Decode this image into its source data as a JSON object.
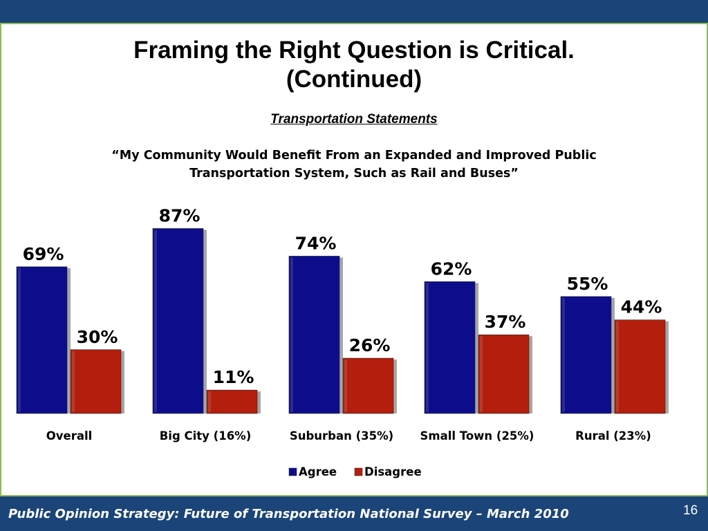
{
  "slide": {
    "title_line1": "Framing the Right Question is Critical.",
    "title_line2": "(Continued)",
    "subtitle": "Transportation Statements",
    "question_line1": "“My Community Would Benefit From an Expanded and Improved Public",
    "question_line2": "Transportation System, Such as Rail and Buses”",
    "footer": "Public Opinion Strategy: Future of Transportation National Survey – March 2010",
    "page_number": "16"
  },
  "colors": {
    "header_bar": "#1b4478",
    "frame_border": "#8cbb56",
    "agree": "#0d0d8c",
    "disagree": "#b31f0c"
  },
  "chart_data": {
    "type": "bar",
    "categories": [
      "Overall",
      "Big City (16%)",
      "Suburban (35%)",
      "Small Town (25%)",
      "Rural (23%)"
    ],
    "series": [
      {
        "name": "Agree",
        "values": [
          69,
          87,
          74,
          62,
          55
        ],
        "labels": [
          "69%",
          "87%",
          "74%",
          "62%",
          "55%"
        ],
        "color": "#0d0d8c"
      },
      {
        "name": "Disagree",
        "values": [
          30,
          11,
          26,
          37,
          44
        ],
        "labels": [
          "30%",
          "11%",
          "26%",
          "37%",
          "44%"
        ],
        "color": "#b31f0c"
      }
    ],
    "ylim": [
      0,
      100
    ],
    "grid": false,
    "legend_position": "bottom-center"
  }
}
